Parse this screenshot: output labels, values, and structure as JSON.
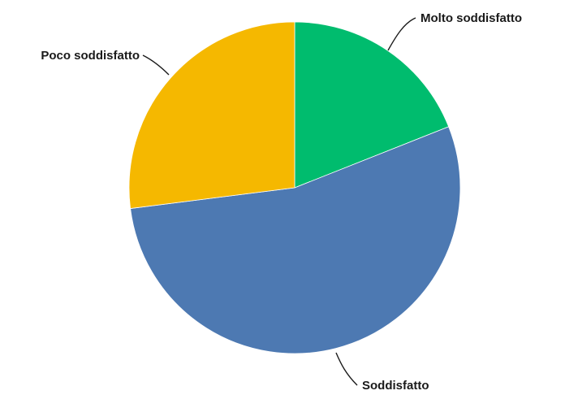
{
  "chart_data": {
    "type": "pie",
    "title": "",
    "slices": [
      {
        "label": "Molto soddisfatto",
        "value": 19,
        "color": "#00BC6E"
      },
      {
        "label": "Soddisfatto",
        "value": 54,
        "color": "#4D79B2"
      },
      {
        "label": "Poco soddisfatto",
        "value": 27,
        "color": "#F5B800"
      }
    ],
    "start_angle": "12 o'clock",
    "direction": "clockwise",
    "legend": "none"
  }
}
